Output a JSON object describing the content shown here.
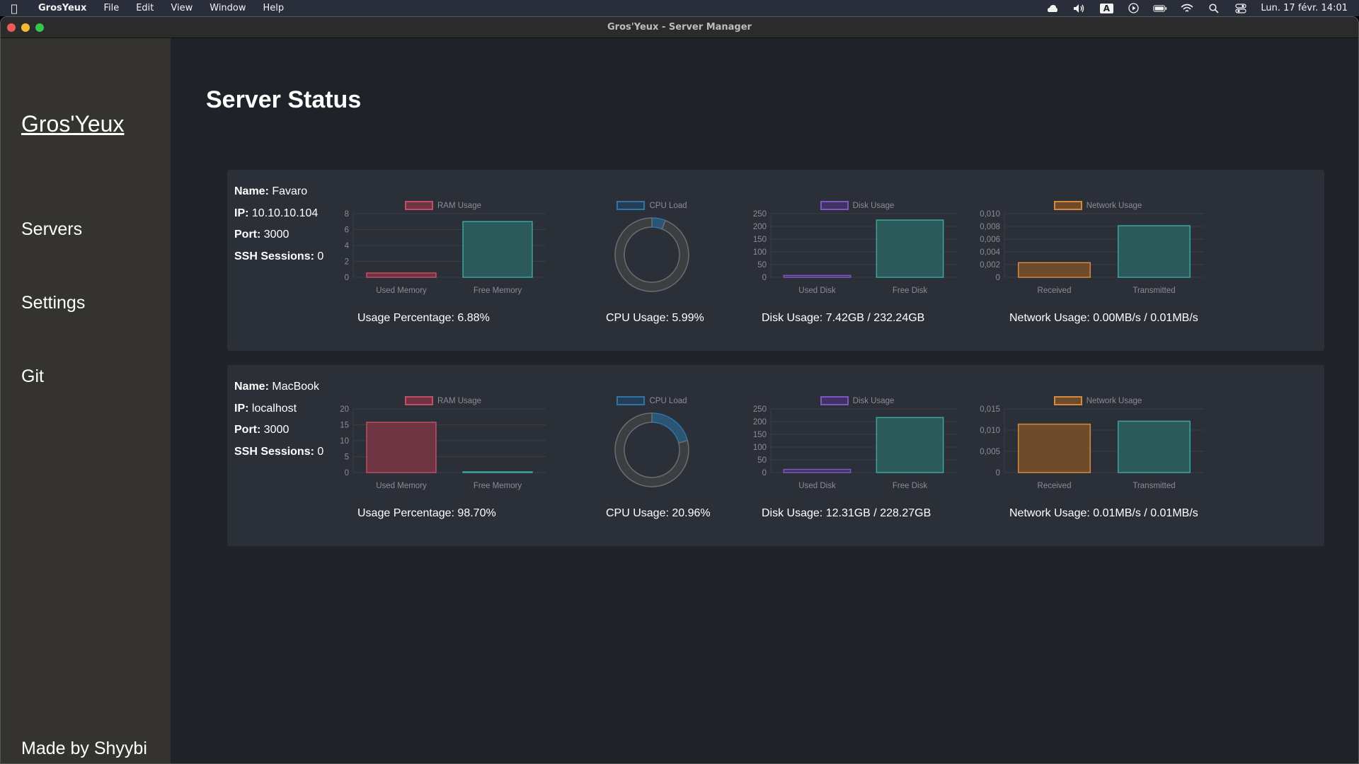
{
  "menubar": {
    "app_name": "GrosYeux",
    "menus": [
      "File",
      "Edit",
      "View",
      "Window",
      "Help"
    ],
    "input_source": "A",
    "clock": "Lun. 17 févr. 14:01"
  },
  "window": {
    "title": "Gros'Yeux - Server Manager"
  },
  "sidebar": {
    "brand": "Gros'Yeux",
    "items": [
      {
        "label": "Servers"
      },
      {
        "label": "Settings"
      },
      {
        "label": "Git"
      }
    ],
    "footer": "Made by Shyybi"
  },
  "page": {
    "title": "Server Status"
  },
  "labels": {
    "name": "Name:",
    "ip": "IP:",
    "port": "Port:",
    "ssh": "SSH Sessions:"
  },
  "colors": {
    "ram": "#c24d66",
    "ram_fill": "#6e3442",
    "cpu": "#2f74a6",
    "disk": "#7d57c1",
    "network": "#d6883f",
    "network_fill": "#6e4b2b",
    "free": "#3aa59e",
    "free_fill": "#2c5a5a",
    "donut_track": "#6b6d70"
  },
  "servers": [
    {
      "name": "Favaro",
      "ip": "10.10.10.104",
      "port": "3000",
      "ssh_sessions": "0",
      "ram_caption": "Usage Percentage: 6.88%",
      "cpu_caption": "CPU Usage: 5.99%",
      "disk_caption": "Disk Usage: 7.42GB / 232.24GB",
      "network_caption": "Network Usage: 0.00MB/s / 0.01MB/s"
    },
    {
      "name": "MacBook",
      "ip": "localhost",
      "port": "3000",
      "ssh_sessions": "0",
      "ram_caption": "Usage Percentage: 98.70%",
      "cpu_caption": "CPU Usage: 20.96%",
      "disk_caption": "Disk Usage: 12.31GB / 228.27GB",
      "network_caption": "Network Usage: 0.01MB/s / 0.01MB/s"
    }
  ],
  "chart_data": [
    {
      "type": "bar",
      "title": "RAM Usage",
      "server": "Favaro",
      "categories": [
        "Used Memory",
        "Free Memory"
      ],
      "values": [
        0.55,
        7.0
      ],
      "ylim": [
        0,
        8
      ],
      "yticks": [
        "0",
        "2",
        "4",
        "6",
        "8"
      ]
    },
    {
      "type": "pie",
      "title": "CPU Load",
      "server": "Favaro",
      "values": [
        5.99,
        94.01
      ]
    },
    {
      "type": "bar",
      "title": "Disk Usage",
      "server": "Favaro",
      "categories": [
        "Used Disk",
        "Free Disk"
      ],
      "values": [
        7.42,
        224.82
      ],
      "ylim": [
        0,
        250
      ],
      "yticks": [
        "0",
        "50",
        "100",
        "150",
        "200",
        "250"
      ]
    },
    {
      "type": "bar",
      "title": "Network Usage",
      "server": "Favaro",
      "categories": [
        "Received",
        "Transmitted"
      ],
      "values": [
        0.0023,
        0.0081
      ],
      "ylim": [
        0,
        0.01
      ],
      "yticks": [
        "0",
        "0,002",
        "0,004",
        "0,006",
        "0,008",
        "0,010"
      ]
    },
    {
      "type": "bar",
      "title": "RAM Usage",
      "server": "MacBook",
      "categories": [
        "Used Memory",
        "Free Memory"
      ],
      "values": [
        15.79,
        0.21
      ],
      "ylim": [
        0,
        20
      ],
      "yticks": [
        "0",
        "5",
        "10",
        "15",
        "20"
      ]
    },
    {
      "type": "pie",
      "title": "CPU Load",
      "server": "MacBook",
      "values": [
        20.96,
        79.04
      ]
    },
    {
      "type": "bar",
      "title": "Disk Usage",
      "server": "MacBook",
      "categories": [
        "Used Disk",
        "Free Disk"
      ],
      "values": [
        12.31,
        215.96
      ],
      "ylim": [
        0,
        250
      ],
      "yticks": [
        "0",
        "50",
        "100",
        "150",
        "200",
        "250"
      ]
    },
    {
      "type": "bar",
      "title": "Network Usage",
      "server": "MacBook",
      "categories": [
        "Received",
        "Transmitted"
      ],
      "values": [
        0.0114,
        0.0121
      ],
      "ylim": [
        0,
        0.015
      ],
      "yticks": [
        "0",
        "0,005",
        "0,010",
        "0,015"
      ]
    }
  ]
}
